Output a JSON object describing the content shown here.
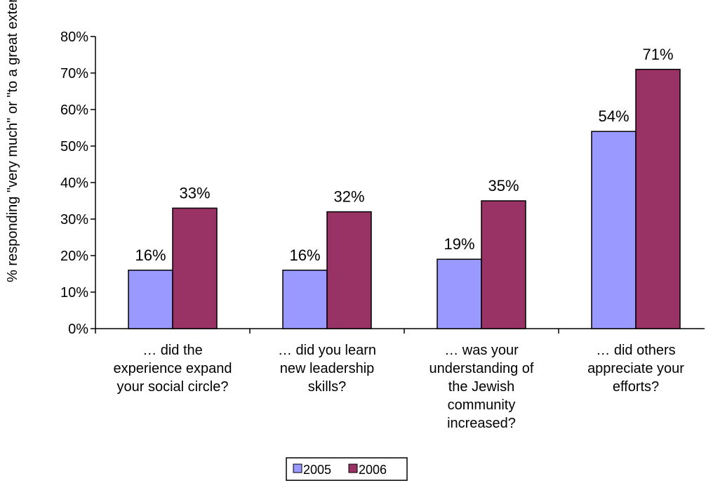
{
  "chart_data": {
    "type": "bar",
    "title": "",
    "xlabel": "",
    "ylabel": "% responding \"very much\" or \"to a great extent\"",
    "ylim": [
      0,
      80
    ],
    "y_tick_step": 10,
    "y_tick_labels": [
      "0%",
      "10%",
      "20%",
      "30%",
      "40%",
      "50%",
      "60%",
      "70%",
      "80%"
    ],
    "grid": false,
    "legend_position": "bottom",
    "categories": [
      [
        "… did the",
        "experience expand",
        "your social circle?"
      ],
      [
        "… did you learn",
        "new leadership",
        "skills?"
      ],
      [
        "… was your",
        "understanding of",
        "the Jewish",
        "community",
        "increased?"
      ],
      [
        "… did others",
        "appreciate your",
        "efforts?"
      ]
    ],
    "series": [
      {
        "name": "2005",
        "color": "#9999ff",
        "values": [
          16,
          16,
          19,
          54
        ],
        "labels": [
          "16%",
          "16%",
          "19%",
          "54%"
        ]
      },
      {
        "name": "2006",
        "color": "#993366",
        "values": [
          33,
          32,
          35,
          71
        ],
        "labels": [
          "33%",
          "32%",
          "35%",
          "71%"
        ]
      }
    ]
  }
}
